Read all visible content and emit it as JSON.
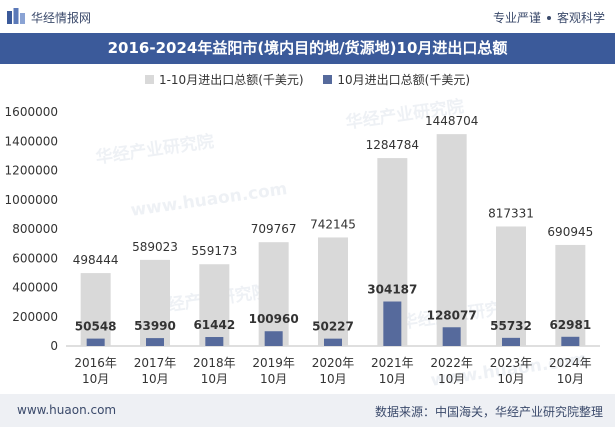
{
  "header": {
    "brand": "华经情报网",
    "tagline_1": "专业严谨",
    "tagline_2": "客观科学"
  },
  "colors": {
    "title_bg": "#3b5a9a",
    "series1": "#d9d9d9",
    "series2": "#566a9c",
    "footer_bg": "#eef0f4"
  },
  "chart_data": {
    "type": "bar",
    "title": "2016-2024年益阳市(境内目的地/货源地)10月进出口总额",
    "categories": [
      "2016年\n10月",
      "2017年\n10月",
      "2018年\n10月",
      "2019年\n10月",
      "2020年\n10月",
      "2021年\n10月",
      "2022年\n10月",
      "2023年\n10月",
      "2024年\n10月"
    ],
    "series": [
      {
        "name": "1-10月进出口总额(千美元)",
        "values": [
          498444,
          589023,
          559173,
          709767,
          742145,
          1284784,
          1448704,
          817331,
          690945
        ]
      },
      {
        "name": "10月进出口总额(千美元)",
        "values": [
          50548,
          53990,
          61442,
          100960,
          50227,
          304187,
          128077,
          55732,
          62981
        ]
      }
    ],
    "yticks": [
      "0",
      "200000",
      "400000",
      "600000",
      "800000",
      "1000000",
      "1200000",
      "1400000",
      "1600000"
    ],
    "ylim": [
      0,
      1600000
    ],
    "legend": "top-center"
  },
  "footer": {
    "url": "www.huaon.com",
    "source": "数据来源：中国海关，华经产业研究院整理"
  },
  "watermark": {
    "text": "华经产业研究院",
    "url": "www.huaon.com"
  }
}
